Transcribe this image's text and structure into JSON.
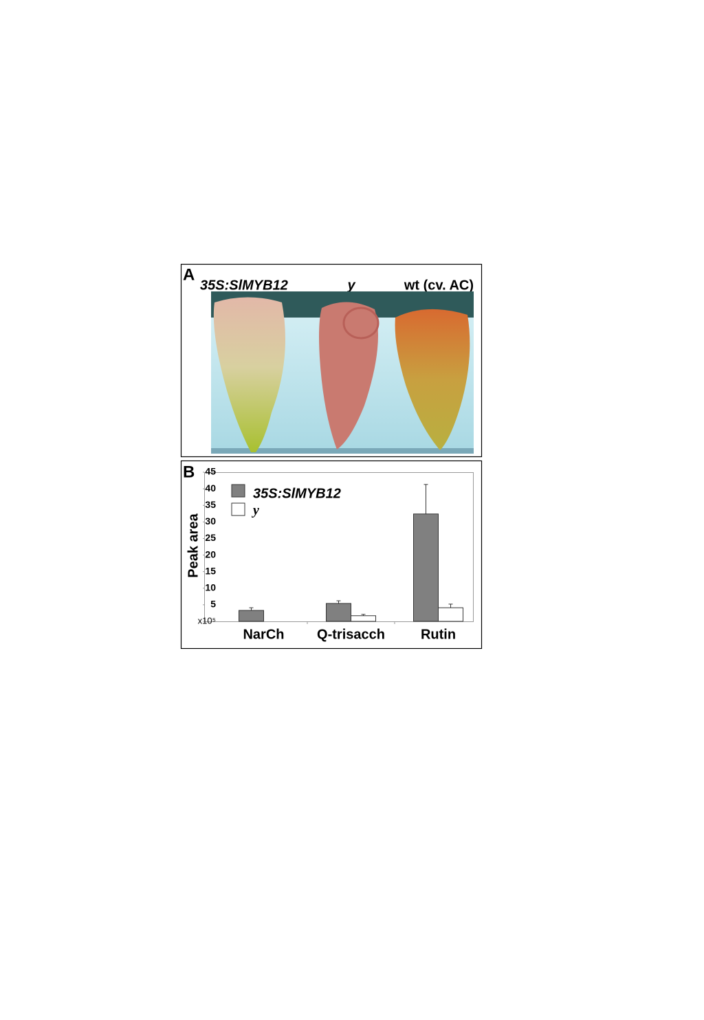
{
  "panel_a": {
    "label": "A",
    "captions": [
      "35S:SlMYB12",
      "y",
      "wt (cv. AC)"
    ]
  },
  "chart_data": {
    "type": "bar",
    "panel_label": "B",
    "ylabel": "Peak area",
    "categories": [
      "NarCh",
      "Q-trisacch",
      "Rutin"
    ],
    "series": [
      {
        "name": "35S:SlMYB12",
        "color": "#808080",
        "values": [
          3.3,
          5.4,
          32.4
        ],
        "errors": [
          0.8,
          0.8,
          8.9
        ]
      },
      {
        "name": "y",
        "color": "#ffffff",
        "values": [
          null,
          1.7,
          4.1
        ],
        "errors": [
          null,
          0.4,
          1.1
        ]
      }
    ],
    "ylim": [
      0,
      45
    ],
    "yticks": [
      {
        "value": 0,
        "label": "x10⁵"
      },
      5,
      10,
      15,
      20,
      25,
      30,
      35,
      40,
      45
    ]
  }
}
